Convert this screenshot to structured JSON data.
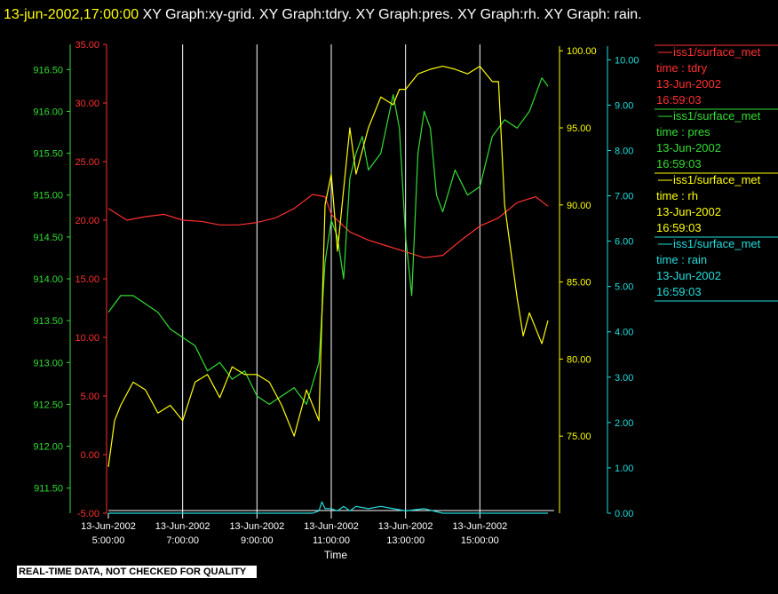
{
  "header": {
    "timestamp": "13-jun-2002,17:00:00",
    "title": "XY Graph:xy-grid.  XY Graph:tdry.  XY Graph:pres.  XY Graph:rh.  XY Graph: rain."
  },
  "notice": "REAL-TIME DATA, NOT CHECKED FOR QUALITY",
  "colors": {
    "background": "#000000",
    "grid": "#ffffff",
    "tdry": "#ff3030",
    "pres": "#33dd33",
    "rh": "#ffff00",
    "rain": "#22dddd"
  },
  "chart_data": {
    "type": "line",
    "xlabel": "Time",
    "xlim": [
      "13-Jun-2002 05:00:00",
      "13-Jun-2002 17:00:00"
    ],
    "x_ticks": [
      {
        "date": "13-Jun-2002",
        "time": "5:00:00"
      },
      {
        "date": "13-Jun-2002",
        "time": "7:00:00"
      },
      {
        "date": "13-Jun-2002",
        "time": "9:00:00"
      },
      {
        "date": "13-Jun-2002",
        "time": "11:00:00"
      },
      {
        "date": "13-Jun-2002",
        "time": "13:00:00"
      },
      {
        "date": "13-Jun-2002",
        "time": "15:00:00"
      }
    ],
    "grid": "vertical lines only",
    "axes": {
      "tdry": {
        "side": "left-outer",
        "range": [
          -5,
          35
        ],
        "ticks": [
          "-5.00",
          "0.00",
          "5.00",
          "10.00",
          "15.00",
          "20.00",
          "25.00",
          "30.00",
          "35.00"
        ]
      },
      "pres": {
        "side": "left-inner",
        "range": [
          911.2,
          916.8
        ],
        "ticks": [
          "911.50",
          "912.00",
          "912.50",
          "913.00",
          "913.50",
          "914.00",
          "914.50",
          "915.00",
          "915.50",
          "916.00",
          "916.50"
        ]
      },
      "rh": {
        "side": "right-inner",
        "range": [
          70,
          100.3
        ],
        "ticks": [
          "75.00",
          "80.00",
          "85.00",
          "90.00",
          "95.00",
          "100.00"
        ]
      },
      "rain": {
        "side": "right-outer",
        "range": [
          0,
          10.3
        ],
        "ticks": [
          "0.00",
          "1.00",
          "2.00",
          "3.00",
          "4.00",
          "5.00",
          "6.00",
          "7.00",
          "8.00",
          "9.00",
          "10.00"
        ]
      }
    },
    "legend": [
      {
        "name": "iss1/surface_met",
        "variable": "time : tdry",
        "date": "13-Jun-2002",
        "time": "16:59:03"
      },
      {
        "name": "iss1/surface_met",
        "variable": "time : pres",
        "date": "13-Jun-2002",
        "time": "16:59:03"
      },
      {
        "name": "iss1/surface_met",
        "variable": "time : rh",
        "date": "13-Jun-2002",
        "time": "16:59:03"
      },
      {
        "name": "iss1/surface_met",
        "variable": "time : rain",
        "date": "13-Jun-2002",
        "time": "16:59:03"
      }
    ],
    "legend_position": "right",
    "series": [
      {
        "key": "tdry",
        "name": "iss1/surface_met",
        "x": [
          "05:00",
          "05:30",
          "06:00",
          "06:30",
          "07:00",
          "07:30",
          "08:00",
          "08:30",
          "09:00",
          "09:30",
          "10:00",
          "10:30",
          "10:50",
          "11:00",
          "11:30",
          "12:00",
          "12:30",
          "13:00",
          "13:30",
          "14:00",
          "14:30",
          "15:00",
          "15:30",
          "16:00",
          "16:30",
          "16:50"
        ],
        "y": [
          21.0,
          20.0,
          20.3,
          20.5,
          20.0,
          19.9,
          19.6,
          19.6,
          19.8,
          20.2,
          21.0,
          22.2,
          22.0,
          20.5,
          19.0,
          18.3,
          17.8,
          17.3,
          16.8,
          17.0,
          18.3,
          19.5,
          20.2,
          21.5,
          22.0,
          21.2
        ]
      },
      {
        "key": "pres",
        "name": "iss1/surface_met",
        "x": [
          "05:00",
          "05:20",
          "05:40",
          "06:00",
          "06:20",
          "06:40",
          "07:00",
          "07:20",
          "07:40",
          "08:00",
          "08:20",
          "08:40",
          "09:00",
          "09:20",
          "09:40",
          "10:00",
          "10:20",
          "10:40",
          "10:50",
          "11:00",
          "11:10",
          "11:20",
          "11:30",
          "11:40",
          "11:50",
          "12:00",
          "12:20",
          "12:40",
          "12:50",
          "13:00",
          "13:10",
          "13:20",
          "13:30",
          "13:40",
          "13:50",
          "14:00",
          "14:20",
          "14:40",
          "15:00",
          "15:20",
          "15:40",
          "16:00",
          "16:20",
          "16:40",
          "16:50"
        ],
        "y": [
          913.6,
          913.8,
          913.8,
          913.7,
          913.6,
          913.4,
          913.3,
          913.2,
          912.9,
          913.0,
          912.8,
          912.9,
          912.6,
          912.5,
          912.6,
          912.7,
          912.5,
          913.0,
          914.2,
          914.7,
          914.5,
          914.0,
          915.2,
          915.5,
          915.7,
          915.3,
          915.5,
          916.2,
          915.8,
          914.5,
          913.8,
          915.5,
          916.0,
          915.8,
          915.0,
          914.8,
          915.3,
          915.0,
          915.1,
          915.7,
          915.9,
          915.8,
          916.0,
          916.4,
          916.3
        ]
      },
      {
        "key": "rh",
        "name": "iss1/surface_met",
        "x": [
          "05:00",
          "05:10",
          "05:20",
          "05:40",
          "06:00",
          "06:20",
          "06:40",
          "07:00",
          "07:20",
          "07:40",
          "08:00",
          "08:20",
          "08:40",
          "09:00",
          "09:20",
          "09:40",
          "10:00",
          "10:20",
          "10:40",
          "10:50",
          "11:00",
          "11:10",
          "11:20",
          "11:30",
          "11:40",
          "12:00",
          "12:20",
          "12:40",
          "12:50",
          "13:00",
          "13:20",
          "13:40",
          "14:00",
          "14:20",
          "14:40",
          "15:00",
          "15:10",
          "15:20",
          "15:30",
          "15:40",
          "16:00",
          "16:10",
          "16:20",
          "16:30",
          "16:40",
          "16:50"
        ],
        "y": [
          73.0,
          76.0,
          77.0,
          78.5,
          78.0,
          76.5,
          77.0,
          76.0,
          78.5,
          79.0,
          77.5,
          79.5,
          79.0,
          79.0,
          78.5,
          77.0,
          75.0,
          78.0,
          76.0,
          90.0,
          92.0,
          87.0,
          91.0,
          95.0,
          92.0,
          95.0,
          97.0,
          96.5,
          97.5,
          97.5,
          98.5,
          98.8,
          99.0,
          98.8,
          98.5,
          99.0,
          98.5,
          98.0,
          98.0,
          90.0,
          84.0,
          81.5,
          83.0,
          82.0,
          81.0,
          82.5
        ]
      },
      {
        "key": "rain",
        "name": "iss1/surface_met",
        "x": [
          "05:00",
          "10:30",
          "10:40",
          "10:45",
          "10:50",
          "11:00",
          "11:10",
          "11:20",
          "11:30",
          "11:40",
          "12:00",
          "12:20",
          "12:40",
          "13:00",
          "13:30",
          "14:00",
          "14:30",
          "15:00",
          "16:00",
          "16:50"
        ],
        "y": [
          0,
          0,
          0.05,
          0.25,
          0.1,
          0.1,
          0.05,
          0.15,
          0.05,
          0.15,
          0.1,
          0.15,
          0.1,
          0.05,
          0.1,
          0,
          0,
          0,
          0,
          0
        ]
      }
    ]
  }
}
